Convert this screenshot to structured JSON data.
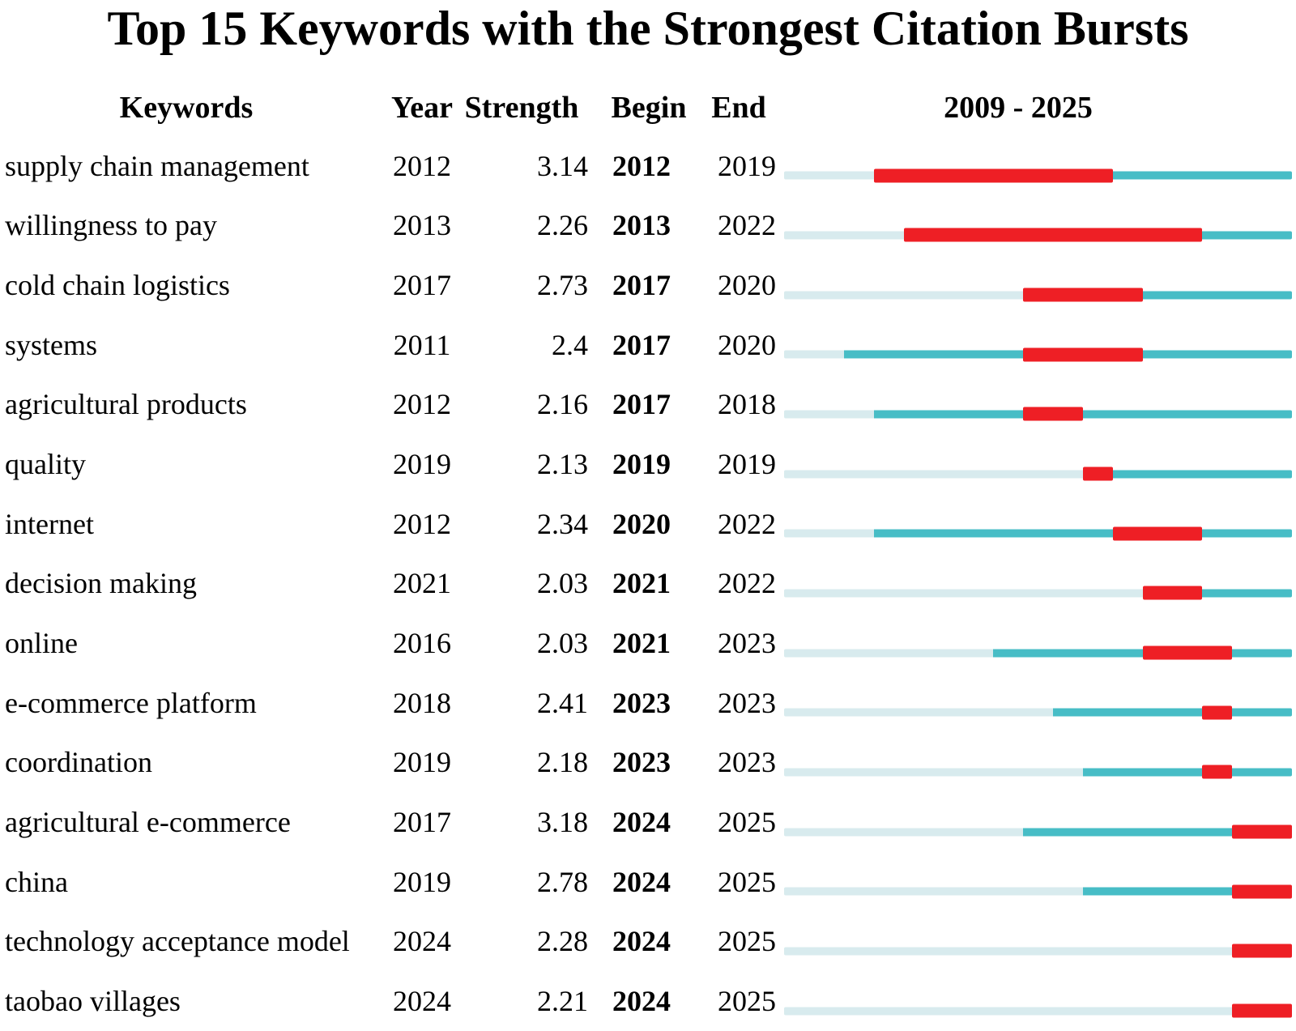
{
  "headers": {
    "keywords": "Keywords",
    "year": "Year",
    "strength": "Strength",
    "begin": "Begin",
    "end": "End",
    "range": "2009 - 2025"
  },
  "chart_data": {
    "type": "table",
    "title": "Top 15 Keywords with the Strongest Citation Bursts",
    "columns": [
      "Keywords",
      "Year",
      "Strength",
      "Begin",
      "End",
      "2009 - 2025"
    ],
    "timeline": {
      "start": 2009,
      "end": 2025
    },
    "legend_colors": {
      "pre_appearance": "#d8ebee",
      "active_period": "#47bdc6",
      "burst_period": "#ee1f25"
    },
    "rows": [
      {
        "keyword": "supply chain management",
        "year": 2012,
        "strength": "3.14",
        "begin": 2012,
        "end": 2019
      },
      {
        "keyword": "willingness to pay",
        "year": 2013,
        "strength": "2.26",
        "begin": 2013,
        "end": 2022
      },
      {
        "keyword": "cold chain logistics",
        "year": 2017,
        "strength": "2.73",
        "begin": 2017,
        "end": 2020
      },
      {
        "keyword": "systems",
        "year": 2011,
        "strength": "2.4",
        "begin": 2017,
        "end": 2020
      },
      {
        "keyword": "agricultural products",
        "year": 2012,
        "strength": "2.16",
        "begin": 2017,
        "end": 2018
      },
      {
        "keyword": "quality",
        "year": 2019,
        "strength": "2.13",
        "begin": 2019,
        "end": 2019
      },
      {
        "keyword": "internet",
        "year": 2012,
        "strength": "2.34",
        "begin": 2020,
        "end": 2022
      },
      {
        "keyword": "decision making",
        "year": 2021,
        "strength": "2.03",
        "begin": 2021,
        "end": 2022
      },
      {
        "keyword": "online",
        "year": 2016,
        "strength": "2.03",
        "begin": 2021,
        "end": 2023
      },
      {
        "keyword": "e-commerce platform",
        "year": 2018,
        "strength": "2.41",
        "begin": 2023,
        "end": 2023
      },
      {
        "keyword": "coordination",
        "year": 2019,
        "strength": "2.18",
        "begin": 2023,
        "end": 2023
      },
      {
        "keyword": "agricultural e-commerce",
        "year": 2017,
        "strength": "3.18",
        "begin": 2024,
        "end": 2025
      },
      {
        "keyword": "china",
        "year": 2019,
        "strength": "2.78",
        "begin": 2024,
        "end": 2025
      },
      {
        "keyword": "technology acceptance model",
        "year": 2024,
        "strength": "2.28",
        "begin": 2024,
        "end": 2025
      },
      {
        "keyword": "taobao villages",
        "year": 2024,
        "strength": "2.21",
        "begin": 2024,
        "end": 2025
      }
    ]
  }
}
